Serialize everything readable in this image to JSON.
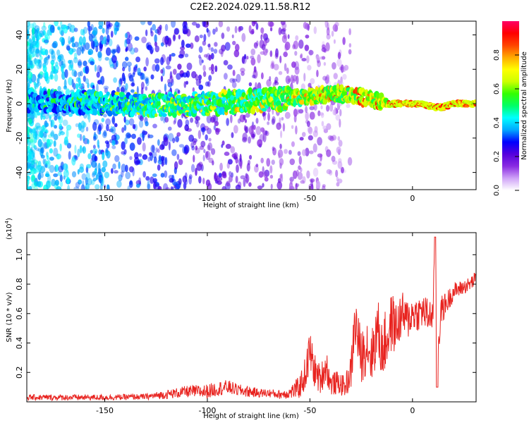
{
  "title": "C2E2.2024.029.11.58.R12",
  "colors": {
    "snr_line": "#e8231f",
    "axis": "#000000",
    "background": "#ffffff"
  },
  "chart_data": [
    {
      "type": "heatmap",
      "xlabel": "Height of straight line (km)",
      "ylabel": "Frequency (Hz)",
      "xlim": [
        -188,
        31
      ],
      "ylim": [
        -50,
        48
      ],
      "x_ticks": [
        -150,
        -100,
        -50,
        0
      ],
      "y_ticks": [
        -40,
        -20,
        0,
        20,
        40
      ],
      "colorbar": {
        "label": "Normalized spectral amplitude",
        "range": [
          0,
          1
        ],
        "ticks": [
          0.0,
          0.2,
          0.4,
          0.6,
          0.8
        ],
        "colormap": [
          "#ffffff",
          "#cfa3f7",
          "#8a2be2",
          "#5500dd",
          "#0000ff",
          "#00a8ff",
          "#00ffff",
          "#00ff66",
          "#33ff00",
          "#ccff00",
          "#ffff00",
          "#ffaa00",
          "#ff4400",
          "#ff0000",
          "#ff0066"
        ]
      },
      "ridge": {
        "x": [
          -188,
          -160,
          -130,
          -100,
          -75,
          -60,
          -45,
          -35,
          -25,
          -18,
          -12,
          0,
          5,
          10,
          15,
          20,
          31
        ],
        "y": [
          2,
          1,
          -1,
          0,
          2,
          3,
          5,
          6,
          4,
          2,
          0,
          0,
          0,
          -2,
          -2,
          0,
          0
        ]
      },
      "grid": false
    },
    {
      "type": "line",
      "xlabel": "Height of straight line (km)",
      "ylabel": "SNR (10 * v/v)",
      "y_multiplier": "(x10",
      "y_multiplier_exp": "4",
      "y_multiplier_close": ")",
      "xlim": [
        -188,
        31
      ],
      "ylim": [
        0,
        1.15
      ],
      "x_ticks": [
        -150,
        -100,
        -50,
        0
      ],
      "y_ticks": [
        0.2,
        0.4,
        0.6,
        0.8,
        1.0
      ],
      "series": [
        {
          "x": [
            -188,
            -170,
            -150,
            -130,
            -120,
            -110,
            -100,
            -95,
            -90,
            -85,
            -80,
            -75,
            -70,
            -65,
            -60,
            -55,
            -52,
            -50,
            -48,
            -45,
            -42,
            -40,
            -36,
            -33,
            -30,
            -28,
            -25,
            -22,
            -20,
            -17,
            -15,
            -12,
            -10,
            -8,
            -5,
            -3,
            0,
            3,
            5,
            8,
            10,
            11,
            12,
            14,
            17,
            20,
            25,
            28,
            31
          ],
          "y": [
            0.03,
            0.03,
            0.03,
            0.035,
            0.05,
            0.07,
            0.07,
            0.09,
            0.1,
            0.08,
            0.07,
            0.06,
            0.06,
            0.05,
            0.06,
            0.1,
            0.2,
            0.35,
            0.22,
            0.15,
            0.25,
            0.12,
            0.13,
            0.1,
            0.2,
            0.55,
            0.3,
            0.4,
            0.3,
            0.5,
            0.35,
            0.45,
            0.55,
            0.5,
            0.6,
            0.55,
            0.6,
            0.6,
            0.62,
            0.58,
            0.6,
            1.12,
            0.3,
            0.62,
            0.68,
            0.75,
            0.78,
            0.8,
            0.84
          ],
          "noise_amplitude": [
            0.02,
            0.02,
            0.02,
            0.02,
            0.03,
            0.04,
            0.05,
            0.05,
            0.05,
            0.04,
            0.04,
            0.03,
            0.03,
            0.03,
            0.04,
            0.08,
            0.12,
            0.15,
            0.12,
            0.1,
            0.12,
            0.08,
            0.08,
            0.07,
            0.12,
            0.2,
            0.18,
            0.2,
            0.18,
            0.22,
            0.2,
            0.22,
            0.2,
            0.18,
            0.15,
            0.15,
            0.12,
            0.12,
            0.12,
            0.12,
            0.1,
            0.1,
            0.1,
            0.1,
            0.08,
            0.06,
            0.05,
            0.05,
            0.05
          ]
        }
      ],
      "grid": false
    }
  ]
}
